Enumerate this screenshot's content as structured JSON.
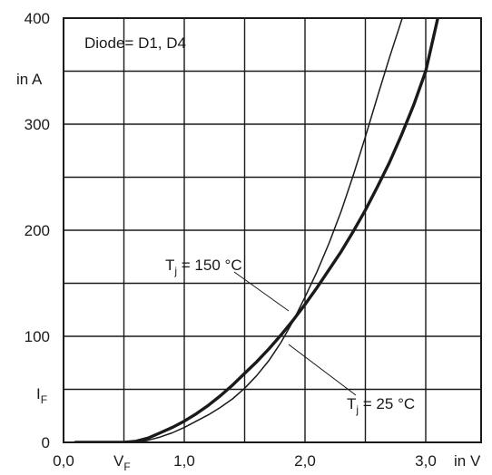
{
  "chart_data": {
    "type": "line",
    "annotation": "Diode= D1, D4",
    "x_unit": "in V",
    "x_symbol": "V",
    "x_symbol_sub": "F",
    "y_unit": "in A",
    "y_symbol": "I",
    "y_symbol_sub": "F",
    "xlim": [
      0,
      3.25
    ],
    "ylim": [
      0,
      400
    ],
    "grid": true,
    "x_ticks": [
      {
        "value": 0.0,
        "label": "0,0"
      },
      {
        "value": 1.0,
        "label": "1,0"
      },
      {
        "value": 2.0,
        "label": "2,0"
      },
      {
        "value": 3.0,
        "label": "3,0"
      }
    ],
    "y_ticks": [
      {
        "value": 0,
        "label": "0"
      },
      {
        "value": 100,
        "label": "100"
      },
      {
        "value": 200,
        "label": "200"
      },
      {
        "value": 300,
        "label": "300"
      },
      {
        "value": 400,
        "label": "400"
      }
    ],
    "series": [
      {
        "name": "Tj = 150 °C",
        "label_main": "T",
        "label_sub": "j",
        "label_rest": " = 150 °C",
        "x": [
          0.1,
          0.3,
          0.5,
          0.6,
          0.7,
          0.8,
          0.9,
          1.0,
          1.1,
          1.2,
          1.3,
          1.4,
          1.5,
          1.6,
          1.7,
          1.8,
          1.9,
          2.0,
          2.1,
          2.2,
          2.3,
          2.4,
          2.5,
          2.6,
          2.7,
          2.8,
          2.9,
          3.0,
          3.1
        ],
        "values": [
          0,
          0,
          0,
          1,
          4,
          9,
          14,
          20,
          27,
          35,
          44,
          54,
          65,
          76,
          88,
          101,
          115,
          130,
          146,
          163,
          180,
          199,
          219,
          241,
          264,
          290,
          318,
          350,
          400
        ]
      },
      {
        "name": "Tj = 25 °C",
        "label_main": "T",
        "label_sub": "j",
        "label_rest": " = 25 °C",
        "x": [
          0.1,
          0.3,
          0.5,
          0.6,
          0.7,
          0.8,
          0.9,
          1.0,
          1.1,
          1.2,
          1.3,
          1.4,
          1.5,
          1.6,
          1.7,
          1.8,
          1.9,
          2.0,
          2.1,
          2.2,
          2.3,
          2.4,
          2.5,
          2.6,
          2.7,
          2.8,
          2.9,
          2.95
        ],
        "values": [
          0,
          0,
          0,
          0,
          2,
          5,
          9,
          14,
          20,
          26,
          33,
          41,
          51,
          63,
          77,
          94,
          114,
          137,
          161,
          188,
          218,
          252,
          288,
          326,
          363,
          398,
          435,
          455
        ]
      }
    ]
  },
  "colors": {
    "axis": "#1a1a1a",
    "grid": "#1a1a1a",
    "curve": "#1a1a1a",
    "background": "#ffffff"
  }
}
